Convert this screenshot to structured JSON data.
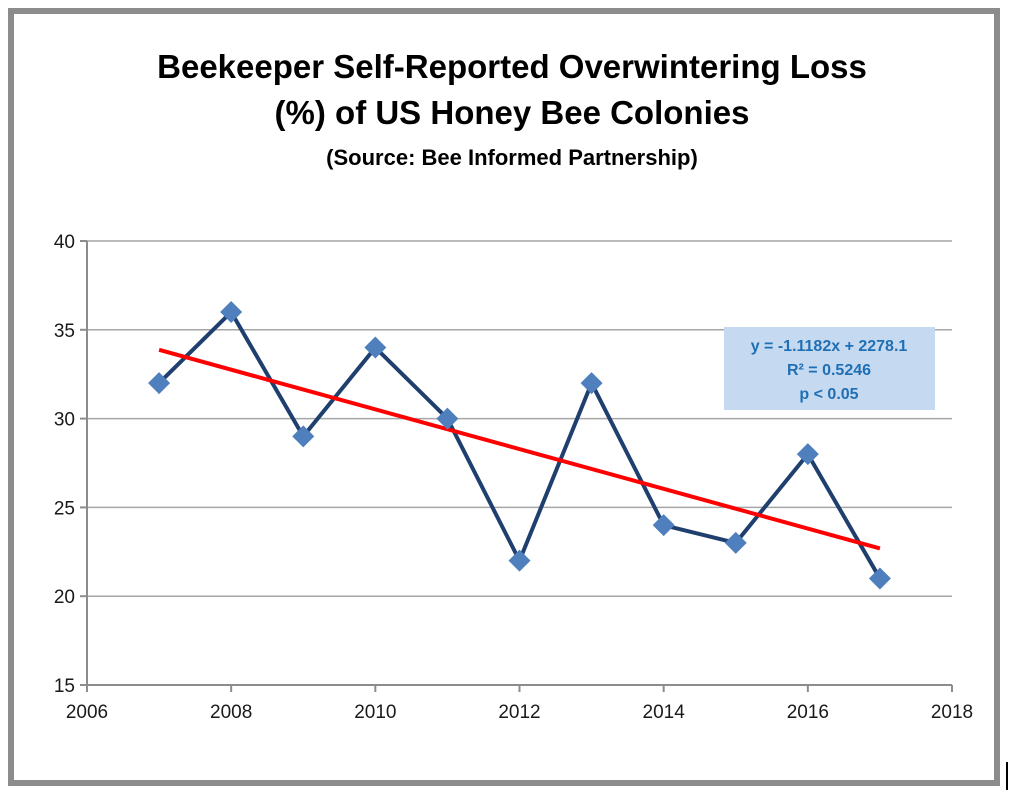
{
  "colors": {
    "series_line": "#1f3f6e",
    "marker": "#4f7fbd",
    "trendline": "#ff0000",
    "gridline": "#a6a6a6",
    "axis": "#8c8c8c",
    "equation_box": "#c5d9f1",
    "equation_text": "#1f6fb4",
    "frame": "#8c8c8c"
  },
  "chart_data": {
    "type": "line",
    "title_lines": [
      "Beekeeper Self-Reported Overwintering Loss",
      "(%) of US Honey Bee Colonies"
    ],
    "subtitle": "(Source: Bee Informed Partnership)",
    "xlabel": "",
    "ylabel": "",
    "xlim": [
      2006,
      2018
    ],
    "ylim": [
      15,
      40
    ],
    "xticks": [
      2006,
      2008,
      2010,
      2012,
      2014,
      2016,
      2018
    ],
    "yticks": [
      15,
      20,
      25,
      30,
      35,
      40
    ],
    "grid": "horizontal",
    "marker": "diamond",
    "x": [
      2007,
      2008,
      2009,
      2010,
      2011,
      2012,
      2013,
      2014,
      2015,
      2016,
      2017
    ],
    "y": [
      32,
      36,
      29,
      34,
      30,
      22,
      32,
      24,
      23,
      28,
      21
    ],
    "trendline": {
      "type": "linear",
      "slope": -1.1182,
      "intercept": 2278.1,
      "x_range": [
        2007,
        2017
      ]
    },
    "annotation": {
      "lines": [
        "y = -1.1182x + 2278.1",
        "R² = 0.5246",
        "p < 0.05"
      ]
    }
  }
}
